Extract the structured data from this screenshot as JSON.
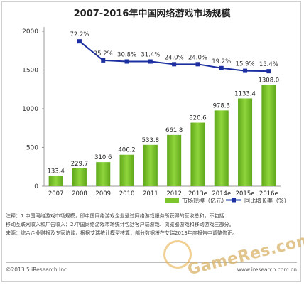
{
  "title": "2007-2016年中国网络游戏市场规模",
  "chart_data": {
    "type": "bar+line",
    "categories": [
      "2007",
      "2008",
      "2009",
      "2010",
      "2011",
      "2012",
      "2013e",
      "2014e",
      "2015e",
      "2016e"
    ],
    "series": [
      {
        "name": "市场规模（亿元）",
        "type": "bar",
        "color": "#7cc52d",
        "values": [
          133.4,
          229.7,
          310.6,
          406.2,
          533.8,
          661.8,
          820.6,
          978.3,
          1133.4,
          1308.0
        ],
        "labels": [
          "133.4",
          "229.7",
          "310.6",
          "406.2",
          "533.8",
          "661.8",
          "820.6",
          "978.3",
          "1133.4",
          "1308.0"
        ]
      },
      {
        "name": "同比增长率（%）",
        "type": "line",
        "color": "#1b2fa0",
        "values_pct": [
          null,
          72.2,
          35.2,
          30.8,
          31.4,
          24.0,
          24.0,
          19.2,
          15.9,
          15.4
        ],
        "plotted_on_left_axis": [
          null,
          1870,
          1625,
          1610,
          1610,
          1575,
          1575,
          1525,
          1490,
          1485
        ],
        "labels": [
          null,
          "72.2%",
          "35.2%",
          "30.8%",
          "31.4%",
          "24.0%",
          "24.0%",
          "19.2%",
          "15.9%",
          "15.4%"
        ]
      }
    ],
    "y_axis": {
      "ticks": [
        "0",
        "500",
        "1000",
        "1500",
        "2000"
      ],
      "ylim": [
        0,
        2000
      ]
    },
    "grid": false,
    "legend_position": "bottom-right"
  },
  "notes": [
    "注释：1.中国网络游戏市场规模，即中国网络游戏企业通过网络游戏服务所获得的营收总和，不包括",
    "移动互联网收入和广告收入；2.中国网络游戏市场统计包括客户端游戏、浏览器游戏和移动游戏三部分。",
    "来源：综合企业财报及专家访谈，根据艾瑞统计模型核算，部分数据将在艾瑞2013年度报告中调整修正。"
  ],
  "footer": {
    "left": "©2013.5 iResearch Inc.",
    "right": "www.iresearch.com.cn"
  },
  "watermark": "GameRes.com"
}
